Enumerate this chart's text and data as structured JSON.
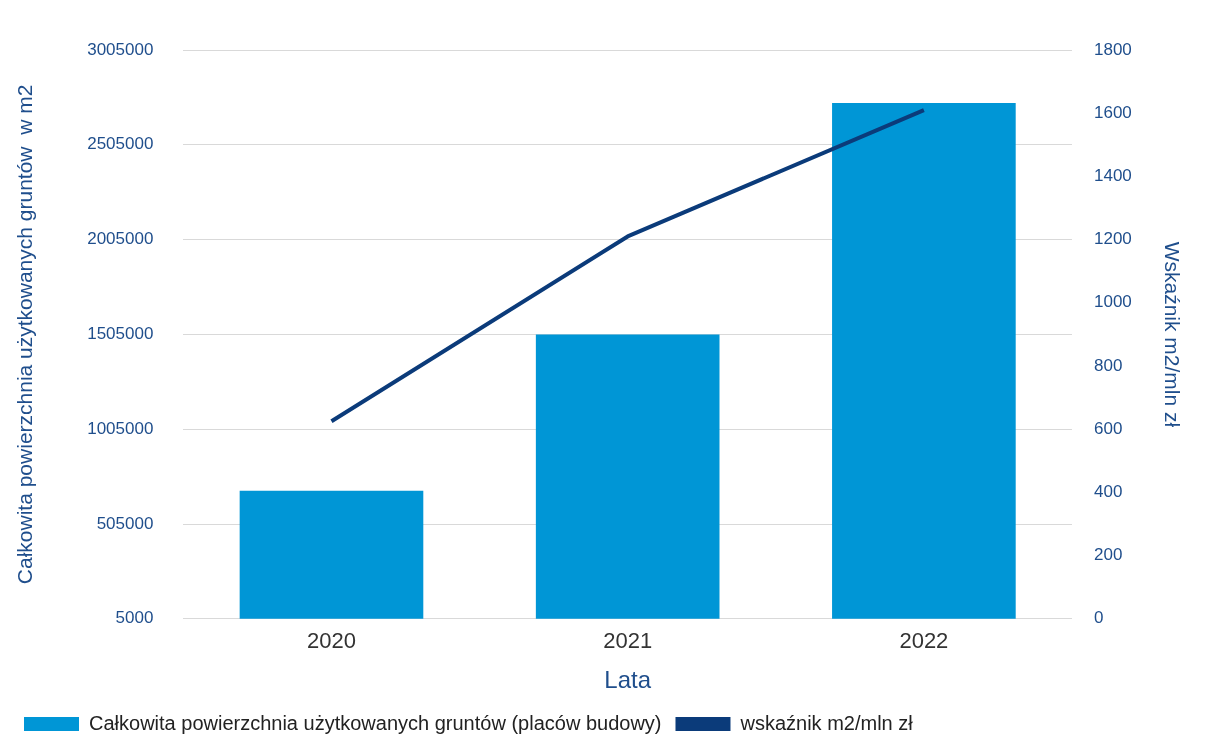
{
  "chart_data": {
    "type": "bar",
    "xlabel": "Lata",
    "ylabel": "Całkowita powierzchnia użytkowanych gruntów  w m2",
    "y2label": "Wskaźnik m2/mln zł",
    "categories": [
      "2020",
      "2021",
      "2022"
    ],
    "series": [
      {
        "name": "Całkowita powierzchnia użytkowanych gruntów (placów budowy)",
        "color": "#0096d6",
        "values": [
          680000,
          1505000,
          2725000
        ]
      },
      {
        "name": "wskaźnik m2/mln zł",
        "type": "line",
        "axis": "y2",
        "color": "#0b3b7a",
        "values": [
          625,
          1210,
          1610
        ]
      }
    ],
    "ylim": [
      5000,
      3005000
    ],
    "yticks": [
      5000,
      505000,
      1005000,
      1505000,
      2005000,
      2505000,
      3005000
    ],
    "y2lim": [
      0,
      1800
    ],
    "y2ticks": [
      0,
      200,
      400,
      600,
      800,
      1000,
      1200,
      1400,
      1600,
      1800
    ],
    "grid": "y",
    "legend": "bottom",
    "marker": "none",
    "line_style": "solid"
  }
}
